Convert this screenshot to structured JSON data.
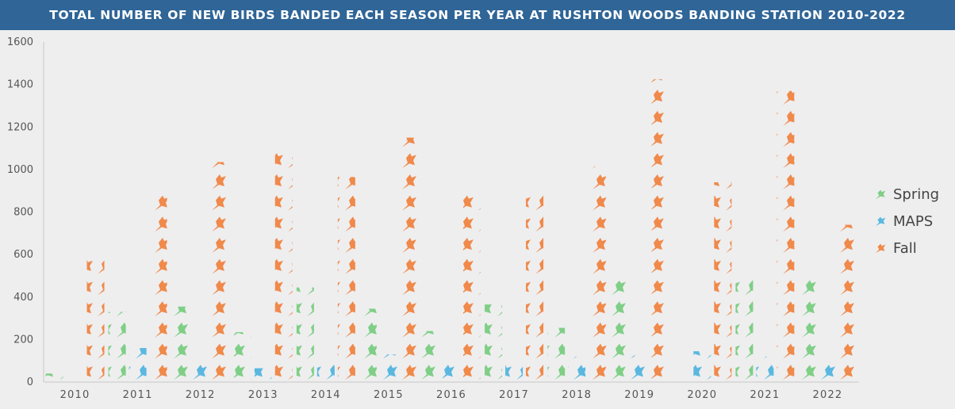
{
  "title": "TOTAL NUMBER OF NEW BIRDS BANDED EACH SEASON PER YEAR AT RUSHTON WOODS BANDING STATION 2010-2022",
  "colors": {
    "Spring": "#7fcf86",
    "MAPS": "#5ab8e0",
    "Fall": "#f0894a",
    "title_bg": "#2f6597"
  },
  "chart_data": {
    "type": "bar",
    "mark": "bird-pictograph-stack",
    "title": "TOTAL NUMBER OF NEW BIRDS BANDED EACH SEASON PER YEAR AT RUSHTON WOODS BANDING STATION 2010-2022",
    "xlabel": "",
    "ylabel": "",
    "categories": [
      "2010",
      "2011",
      "2012",
      "2013",
      "2014",
      "2015",
      "2016",
      "2017",
      "2018",
      "2019",
      "2020",
      "2021",
      "2022"
    ],
    "series": [
      {
        "name": "Spring",
        "values": [
          40,
          330,
          355,
          235,
          445,
          345,
          240,
          365,
          255,
          475,
          0,
          495,
          510
        ]
      },
      {
        "name": "MAPS",
        "values": [
          0,
          160,
          100,
          65,
          105,
          130,
          115,
          110,
          120,
          125,
          145,
          120,
          105
        ]
      },
      {
        "name": "Fall",
        "values": [
          605,
          890,
          1035,
          1085,
          965,
          1150,
          895,
          890,
          1015,
          1425,
          940,
          1370,
          740
        ]
      }
    ],
    "ylim": [
      0,
      1600
    ],
    "yticks": [
      0,
      200,
      400,
      600,
      800,
      1000,
      1200,
      1400,
      1600
    ],
    "grid": false,
    "legend_position": "right"
  }
}
